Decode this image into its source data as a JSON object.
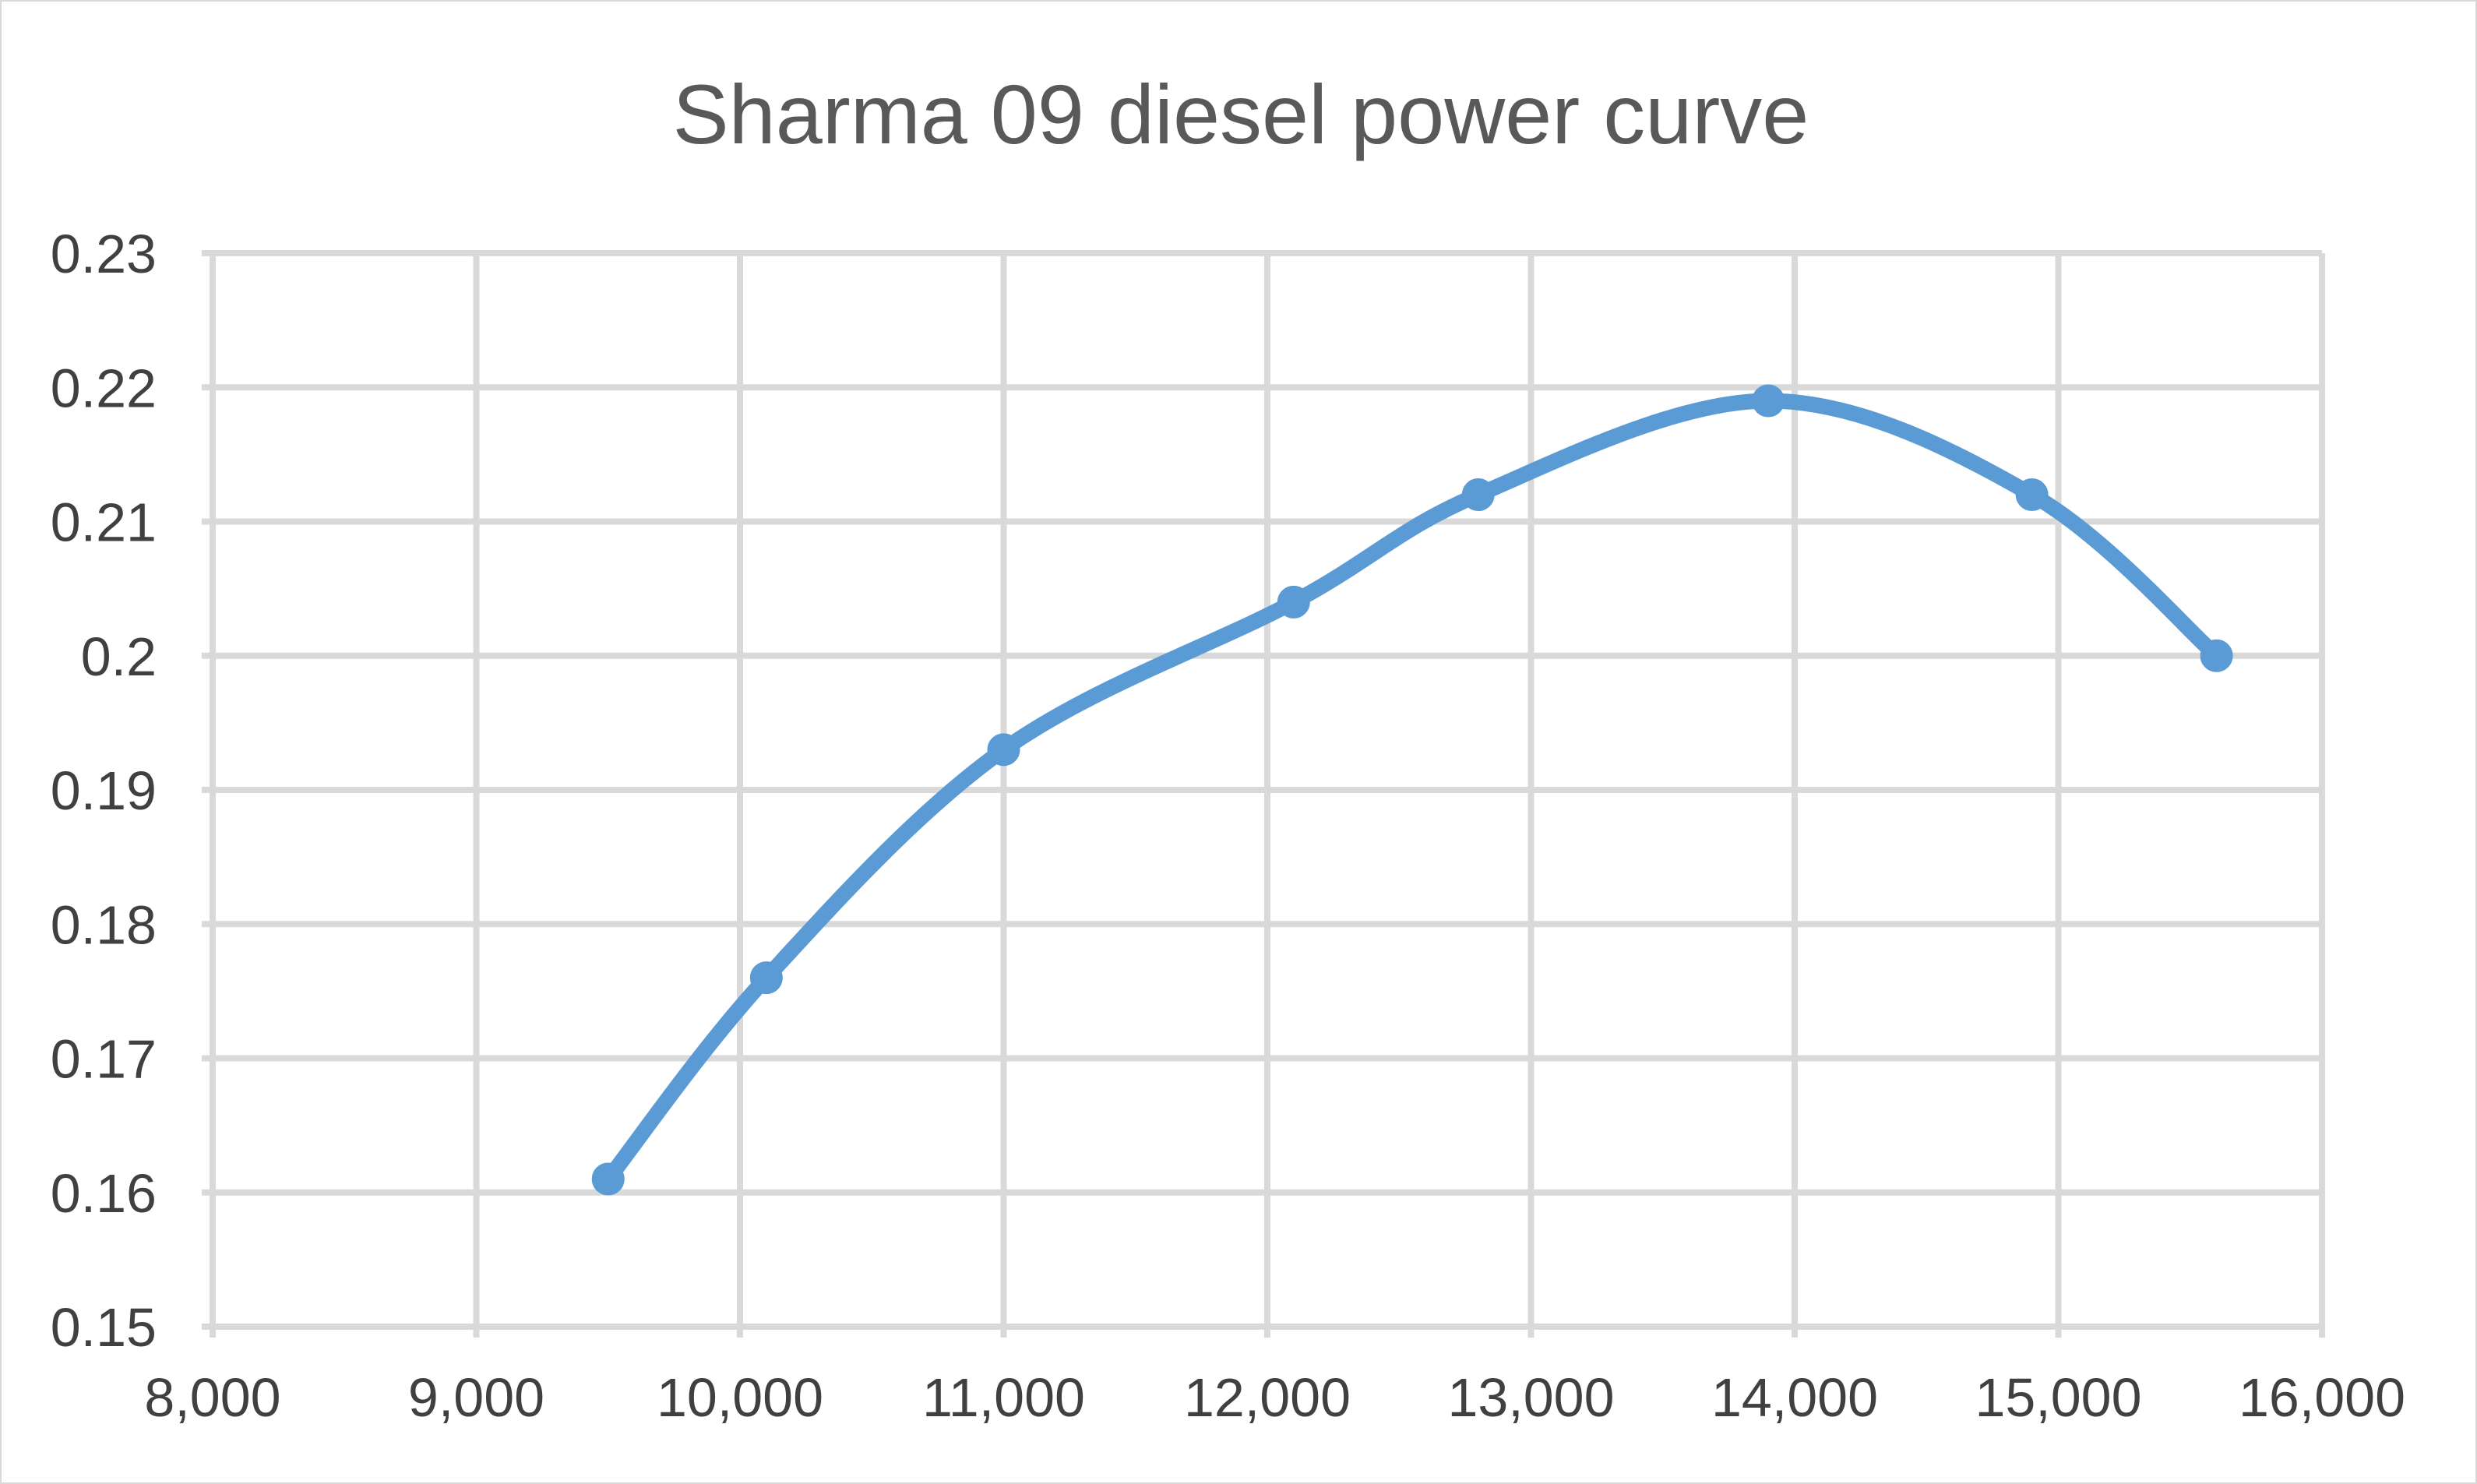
{
  "chart_data": {
    "type": "scatter",
    "title": "Sharma 09 diesel power curve",
    "xlabel": "",
    "ylabel": "",
    "xlim": [
      8000,
      16000
    ],
    "ylim": [
      0.15,
      0.23
    ],
    "x_ticks": [
      "8,000",
      "9,000",
      "10,000",
      "11,000",
      "12,000",
      "13,000",
      "14,000",
      "15,000",
      "16,000"
    ],
    "y_ticks": [
      "0.15",
      "0.16",
      "0.17",
      "0.18",
      "0.19",
      "0.2",
      "0.21",
      "0.22",
      "0.23"
    ],
    "grid": true,
    "legend": "none",
    "smooth": true,
    "series": [
      {
        "color": "#5b9bd5",
        "points": [
          {
            "x": 9500,
            "y": 0.161
          },
          {
            "x": 10100,
            "y": 0.176
          },
          {
            "x": 11000,
            "y": 0.193
          },
          {
            "x": 12100,
            "y": 0.204
          },
          {
            "x": 12800,
            "y": 0.212
          },
          {
            "x": 13900,
            "y": 0.219
          },
          {
            "x": 14900,
            "y": 0.212
          },
          {
            "x": 15600,
            "y": 0.2
          }
        ]
      }
    ]
  }
}
